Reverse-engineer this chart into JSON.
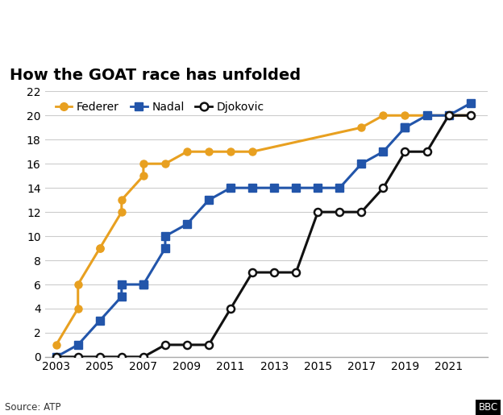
{
  "title": "How the GOAT race has unfolded",
  "source": "Source: ATP",
  "bbc_label": "BBC",
  "federer_label": "Federer",
  "nadal_label": "Nadal",
  "djokovic_label": "Djokovic",
  "federer_color": "#E8A020",
  "nadal_color": "#2255AA",
  "djokovic_color": "#111111",
  "background_color": "#ffffff",
  "federer_years": [
    2003,
    2004,
    2004,
    2005,
    2005,
    2006,
    2006,
    2007,
    2007,
    2008,
    2009,
    2010,
    2011,
    2012,
    2017,
    2018,
    2019,
    2020,
    2021,
    2022
  ],
  "federer_values": [
    1,
    4,
    6,
    9,
    9,
    12,
    13,
    15,
    16,
    16,
    17,
    17,
    17,
    17,
    19,
    20,
    20,
    20,
    20,
    20
  ],
  "nadal_years": [
    2003,
    2004,
    2005,
    2006,
    2006,
    2007,
    2007,
    2008,
    2008,
    2009,
    2010,
    2011,
    2012,
    2013,
    2014,
    2015,
    2016,
    2017,
    2018,
    2019,
    2019,
    2020,
    2021,
    2022
  ],
  "nadal_values": [
    0,
    1,
    3,
    5,
    6,
    6,
    6,
    9,
    10,
    11,
    13,
    14,
    14,
    14,
    14,
    14,
    14,
    16,
    17,
    19,
    19,
    20,
    20,
    21
  ],
  "djokovic_years": [
    2003,
    2004,
    2005,
    2006,
    2007,
    2008,
    2009,
    2010,
    2011,
    2012,
    2013,
    2014,
    2015,
    2016,
    2017,
    2018,
    2019,
    2020,
    2021,
    2022
  ],
  "djokovic_values": [
    0,
    0,
    0,
    0,
    0,
    1,
    1,
    1,
    4,
    7,
    7,
    7,
    12,
    12,
    12,
    14,
    17,
    17,
    20,
    20
  ],
  "xlim": [
    2002.5,
    2022.8
  ],
  "ylim": [
    0,
    22
  ],
  "xticks": [
    2003,
    2005,
    2007,
    2009,
    2011,
    2013,
    2015,
    2017,
    2019,
    2021
  ],
  "yticks": [
    0,
    2,
    4,
    6,
    8,
    10,
    12,
    14,
    16,
    18,
    20,
    22
  ]
}
